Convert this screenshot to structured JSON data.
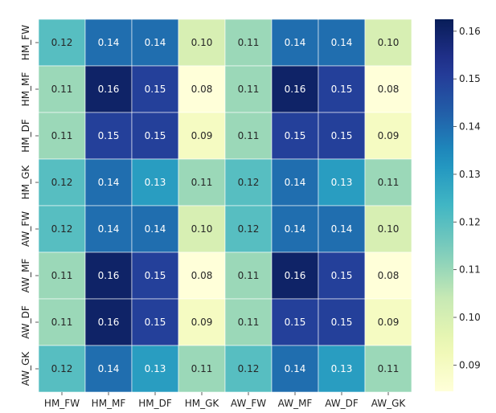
{
  "chart_data": {
    "type": "heatmap",
    "title": "",
    "xlabel": "",
    "ylabel": "",
    "x_categories": [
      "HM_FW",
      "HM_MF",
      "HM_DF",
      "HM_GK",
      "AW_FW",
      "AW_MF",
      "AW_DF",
      "AW_GK"
    ],
    "y_categories": [
      "HM_FW",
      "HM_MF",
      "HM_DF",
      "HM_GK",
      "AW_FW",
      "AW_MF",
      "AW_DF",
      "AW_GK"
    ],
    "values": [
      [
        0.12,
        0.14,
        0.14,
        0.1,
        0.11,
        0.14,
        0.14,
        0.1
      ],
      [
        0.11,
        0.16,
        0.15,
        0.08,
        0.11,
        0.16,
        0.15,
        0.08
      ],
      [
        0.11,
        0.15,
        0.15,
        0.09,
        0.11,
        0.15,
        0.15,
        0.09
      ],
      [
        0.12,
        0.14,
        0.13,
        0.11,
        0.12,
        0.14,
        0.13,
        0.11
      ],
      [
        0.12,
        0.14,
        0.14,
        0.1,
        0.12,
        0.14,
        0.14,
        0.1
      ],
      [
        0.11,
        0.16,
        0.15,
        0.08,
        0.11,
        0.16,
        0.15,
        0.08
      ],
      [
        0.11,
        0.16,
        0.15,
        0.09,
        0.11,
        0.15,
        0.15,
        0.09
      ],
      [
        0.12,
        0.14,
        0.13,
        0.11,
        0.12,
        0.14,
        0.13,
        0.11
      ]
    ],
    "annotation_format": "0.00",
    "colormap": "YlGnBu",
    "colorbar": {
      "range": [
        0.0845,
        0.1625
      ],
      "ticks": [
        "0.09",
        "0.10",
        "0.11",
        "0.12",
        "0.13",
        "0.14",
        "0.15",
        "0.16"
      ],
      "position": "right"
    },
    "grid": false
  }
}
